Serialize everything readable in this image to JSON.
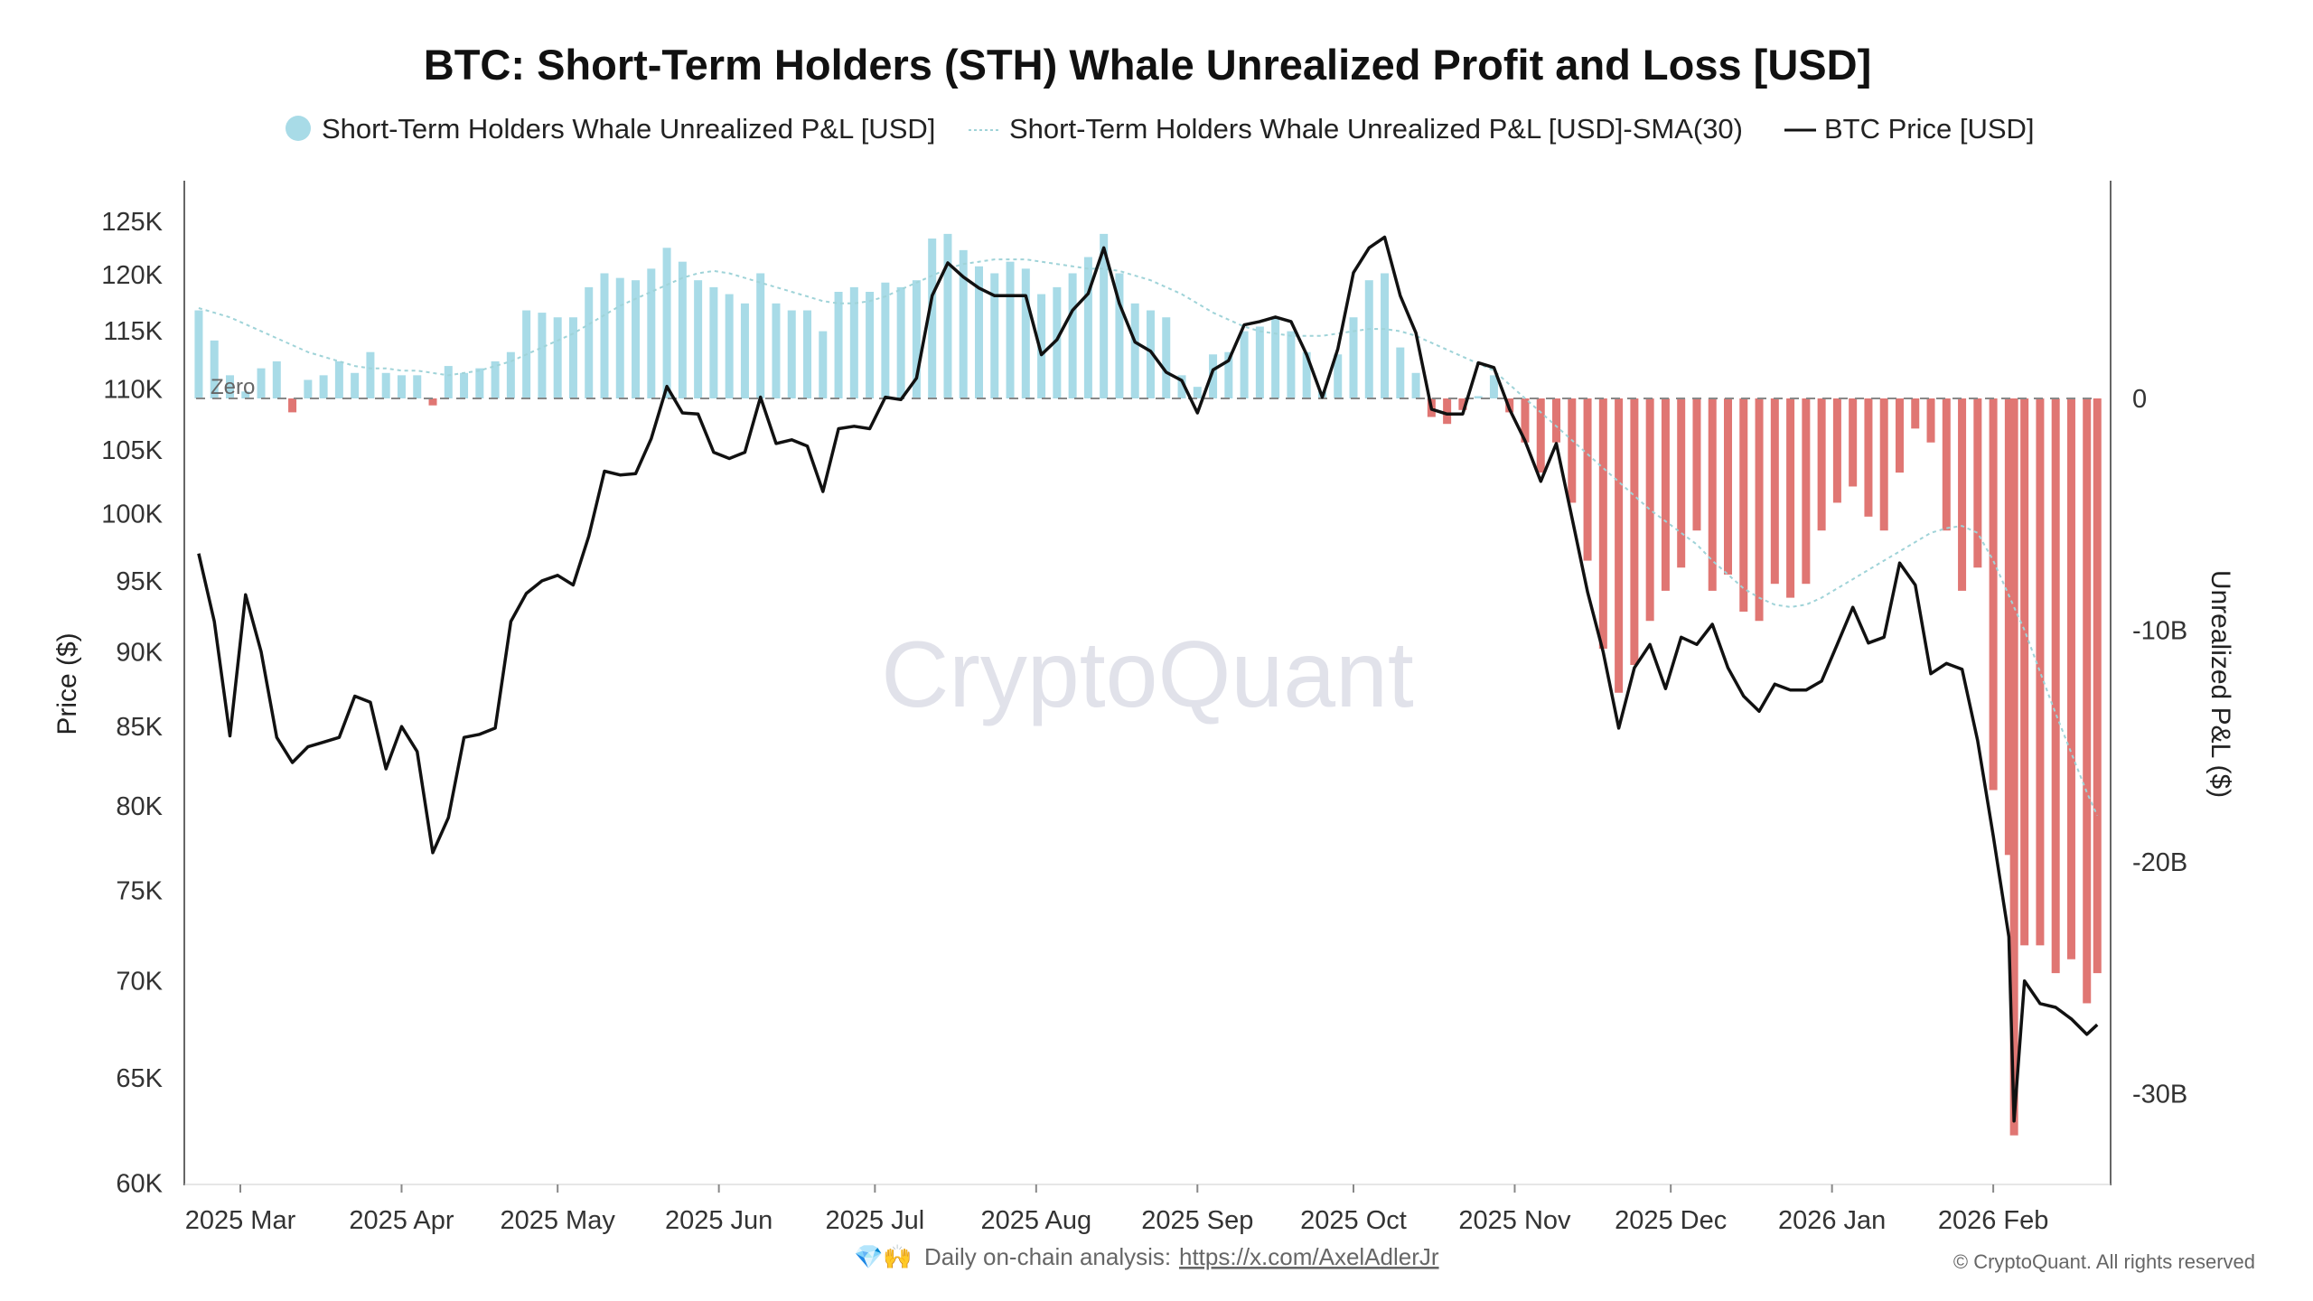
{
  "chart_data": {
    "type": "bar+line",
    "title": "BTC: Short-Term Holders (STH) Whale Unrealized Profit and Loss [USD]",
    "legend": {
      "placement": "top-center",
      "items": [
        {
          "label": "Short-Term Holders Whale Unrealized P&L [USD]",
          "marker": "circle"
        },
        {
          "label": "Short-Term Holders Whale Unrealized P&L [USD]-SMA(30)",
          "marker": "dotted-line"
        },
        {
          "label": "BTC Price [USD]",
          "marker": "line"
        }
      ]
    },
    "left_axis": {
      "label": "Price ($)",
      "scale": "log",
      "range": [
        60000,
        128000
      ],
      "ticks": [
        {
          "value": 60000,
          "label": "60K"
        },
        {
          "value": 65000,
          "label": "65K"
        },
        {
          "value": 70000,
          "label": "70K"
        },
        {
          "value": 75000,
          "label": "75K"
        },
        {
          "value": 80000,
          "label": "80K"
        },
        {
          "value": 85000,
          "label": "85K"
        },
        {
          "value": 90000,
          "label": "90K"
        },
        {
          "value": 95000,
          "label": "95K"
        },
        {
          "value": 100000,
          "label": "100K"
        },
        {
          "value": 105000,
          "label": "105K"
        },
        {
          "value": 110000,
          "label": "110K"
        },
        {
          "value": 115000,
          "label": "115K"
        },
        {
          "value": 120000,
          "label": "120K"
        },
        {
          "value": 125000,
          "label": "125K"
        }
      ]
    },
    "right_axis": {
      "label": "Unrealized P&L ($)",
      "scale": "linear",
      "unit": "USD billions",
      "range": [
        -33.8,
        9.5
      ],
      "ticks": [
        {
          "value": 0,
          "label": "0"
        },
        {
          "value": -10,
          "label": "-10B"
        },
        {
          "value": -20,
          "label": "-20B"
        },
        {
          "value": -30,
          "label": "-30B"
        }
      ]
    },
    "x_axis": {
      "range": [
        "2025-02-20",
        "2026-02-22"
      ],
      "ticks": [
        {
          "date": "2025-03-01",
          "label": "2025 Mar"
        },
        {
          "date": "2025-04-01",
          "label": "2025 Apr"
        },
        {
          "date": "2025-05-01",
          "label": "2025 May"
        },
        {
          "date": "2025-06-01",
          "label": "2025 Jun"
        },
        {
          "date": "2025-07-01",
          "label": "2025 Jul"
        },
        {
          "date": "2025-08-01",
          "label": "2025 Aug"
        },
        {
          "date": "2025-09-01",
          "label": "2025 Sep"
        },
        {
          "date": "2025-10-01",
          "label": "2025 Oct"
        },
        {
          "date": "2025-11-01",
          "label": "2025 Nov"
        },
        {
          "date": "2025-12-01",
          "label": "2025 Dec"
        },
        {
          "date": "2026-01-01",
          "label": "2026 Jan"
        },
        {
          "date": "2026-02-01",
          "label": "2026 Feb"
        }
      ]
    },
    "zero_line_label": "Zero",
    "grid": false,
    "colors": {
      "profit": "#a8dbe7",
      "loss": "#e07673",
      "sma": "#9fd3d8",
      "price": "#111111",
      "zero_line": "#888888"
    },
    "columns": [
      "date",
      "btc_price_usd",
      "pnl_usd_billions",
      "pnl_sma30_usd_billions"
    ],
    "rows": [
      [
        "2025-02-21",
        97000,
        3.8,
        3.9
      ],
      [
        "2025-02-24",
        92100,
        2.5,
        3.7
      ],
      [
        "2025-02-27",
        84400,
        1.0,
        3.5
      ],
      [
        "2025-03-02",
        94000,
        0.3,
        3.2
      ],
      [
        "2025-03-05",
        90000,
        1.3,
        2.9
      ],
      [
        "2025-03-08",
        84300,
        1.6,
        2.6
      ],
      [
        "2025-03-11",
        82700,
        -0.6,
        2.3
      ],
      [
        "2025-03-14",
        83700,
        0.8,
        2.0
      ],
      [
        "2025-03-17",
        84000,
        1.0,
        1.8
      ],
      [
        "2025-03-20",
        84300,
        1.6,
        1.6
      ],
      [
        "2025-03-23",
        87000,
        1.1,
        1.4
      ],
      [
        "2025-03-26",
        86600,
        2.0,
        1.3
      ],
      [
        "2025-03-29",
        82300,
        1.1,
        1.3
      ],
      [
        "2025-04-01",
        85000,
        1.0,
        1.2
      ],
      [
        "2025-04-04",
        83400,
        1.0,
        1.2
      ],
      [
        "2025-04-07",
        77200,
        -0.3,
        1.1
      ],
      [
        "2025-04-10",
        79300,
        1.4,
        1.0
      ],
      [
        "2025-04-13",
        84300,
        1.1,
        1.1
      ],
      [
        "2025-04-16",
        84500,
        1.3,
        1.2
      ],
      [
        "2025-04-19",
        84900,
        1.6,
        1.4
      ],
      [
        "2025-04-22",
        92100,
        2.0,
        1.6
      ],
      [
        "2025-04-25",
        94100,
        3.8,
        1.9
      ],
      [
        "2025-04-28",
        95000,
        3.7,
        2.2
      ],
      [
        "2025-05-01",
        95400,
        3.5,
        2.5
      ],
      [
        "2025-05-04",
        94700,
        3.5,
        2.8
      ],
      [
        "2025-05-07",
        98300,
        4.8,
        3.2
      ],
      [
        "2025-05-10",
        103300,
        5.4,
        3.6
      ],
      [
        "2025-05-13",
        103000,
        5.2,
        4.0
      ],
      [
        "2025-05-16",
        103100,
        5.1,
        4.3
      ],
      [
        "2025-05-19",
        105900,
        5.6,
        4.6
      ],
      [
        "2025-05-22",
        110200,
        6.5,
        4.9
      ],
      [
        "2025-05-25",
        108000,
        5.9,
        5.2
      ],
      [
        "2025-05-28",
        107900,
        5.1,
        5.4
      ],
      [
        "2025-05-31",
        104800,
        4.8,
        5.5
      ],
      [
        "2025-06-03",
        104300,
        4.5,
        5.4
      ],
      [
        "2025-06-06",
        104800,
        4.1,
        5.2
      ],
      [
        "2025-06-09",
        109300,
        5.4,
        5.0
      ],
      [
        "2025-06-12",
        105500,
        4.1,
        4.8
      ],
      [
        "2025-06-15",
        105800,
        3.8,
        4.6
      ],
      [
        "2025-06-18",
        105300,
        3.8,
        4.4
      ],
      [
        "2025-06-21",
        101700,
        2.9,
        4.2
      ],
      [
        "2025-06-24",
        106700,
        4.6,
        4.1
      ],
      [
        "2025-06-27",
        106900,
        4.8,
        4.1
      ],
      [
        "2025-06-30",
        106700,
        4.6,
        4.2
      ],
      [
        "2025-07-03",
        109300,
        5.0,
        4.4
      ],
      [
        "2025-07-06",
        109100,
        4.8,
        4.7
      ],
      [
        "2025-07-09",
        110900,
        5.1,
        5.0
      ],
      [
        "2025-07-12",
        118100,
        6.9,
        5.3
      ],
      [
        "2025-07-15",
        121100,
        7.1,
        5.6
      ],
      [
        "2025-07-18",
        119800,
        6.4,
        5.8
      ],
      [
        "2025-07-21",
        118800,
        5.7,
        5.9
      ],
      [
        "2025-07-24",
        118100,
        5.4,
        6.0
      ],
      [
        "2025-07-27",
        118100,
        5.9,
        6.0
      ],
      [
        "2025-07-30",
        118100,
        5.6,
        6.0
      ],
      [
        "2025-08-02",
        112900,
        4.5,
        5.9
      ],
      [
        "2025-08-05",
        114200,
        4.8,
        5.8
      ],
      [
        "2025-08-08",
        116800,
        5.4,
        5.7
      ],
      [
        "2025-08-11",
        118300,
        6.1,
        5.6
      ],
      [
        "2025-08-14",
        122500,
        7.1,
        5.6
      ],
      [
        "2025-08-17",
        117400,
        5.4,
        5.5
      ],
      [
        "2025-08-20",
        114000,
        4.1,
        5.3
      ],
      [
        "2025-08-23",
        113200,
        3.8,
        5.1
      ],
      [
        "2025-08-26",
        111400,
        3.5,
        4.8
      ],
      [
        "2025-08-29",
        110700,
        1.0,
        4.5
      ],
      [
        "2025-09-01",
        108000,
        0.5,
        4.1
      ],
      [
        "2025-09-04",
        111600,
        1.9,
        3.7
      ],
      [
        "2025-09-07",
        112400,
        2.0,
        3.4
      ],
      [
        "2025-09-10",
        115500,
        2.9,
        3.1
      ],
      [
        "2025-09-13",
        115800,
        3.1,
        2.9
      ],
      [
        "2025-09-16",
        116200,
        3.5,
        2.8
      ],
      [
        "2025-09-19",
        115800,
        2.9,
        2.7
      ],
      [
        "2025-09-22",
        112900,
        2.0,
        2.7
      ],
      [
        "2025-09-25",
        109300,
        0.3,
        2.7
      ],
      [
        "2025-09-28",
        113400,
        1.9,
        2.8
      ],
      [
        "2025-10-01",
        120200,
        3.5,
        2.9
      ],
      [
        "2025-10-04",
        122500,
        5.1,
        3.0
      ],
      [
        "2025-10-07",
        123500,
        5.4,
        3.0
      ],
      [
        "2025-10-10",
        118100,
        2.2,
        2.9
      ],
      [
        "2025-10-13",
        114800,
        1.1,
        2.7
      ],
      [
        "2025-10-16",
        108300,
        -0.8,
        2.4
      ],
      [
        "2025-10-19",
        107900,
        -1.1,
        2.1
      ],
      [
        "2025-10-22",
        107900,
        -0.5,
        1.8
      ],
      [
        "2025-10-25",
        112200,
        0.1,
        1.5
      ],
      [
        "2025-10-28",
        111800,
        1.0,
        1.2
      ],
      [
        "2025-10-31",
        108300,
        -0.6,
        0.6
      ],
      [
        "2025-11-03",
        105700,
        -1.9,
        0.0
      ],
      [
        "2025-11-06",
        102500,
        -3.2,
        -0.6
      ],
      [
        "2025-11-09",
        105500,
        -1.9,
        -1.2
      ],
      [
        "2025-11-12",
        99700,
        -4.5,
        -1.8
      ],
      [
        "2025-11-15",
        94200,
        -7.0,
        -2.4
      ],
      [
        "2025-11-18",
        90000,
        -10.8,
        -3.0
      ],
      [
        "2025-11-21",
        84900,
        -12.7,
        -3.6
      ],
      [
        "2025-11-24",
        88900,
        -11.5,
        -4.2
      ],
      [
        "2025-11-27",
        90500,
        -9.6,
        -4.8
      ],
      [
        "2025-11-30",
        87500,
        -8.3,
        -5.3
      ],
      [
        "2025-12-03",
        91000,
        -7.3,
        -5.8
      ],
      [
        "2025-12-06",
        90500,
        -5.7,
        -6.3
      ],
      [
        "2025-12-09",
        91900,
        -8.3,
        -7.0
      ],
      [
        "2025-12-12",
        88900,
        -7.6,
        -7.6
      ],
      [
        "2025-12-15",
        87000,
        -9.2,
        -8.2
      ],
      [
        "2025-12-18",
        86000,
        -9.6,
        -8.6
      ],
      [
        "2025-12-21",
        87800,
        -8.0,
        -8.9
      ],
      [
        "2025-12-24",
        87400,
        -8.6,
        -9.0
      ],
      [
        "2025-12-27",
        87400,
        -8.0,
        -8.9
      ],
      [
        "2025-12-30",
        88000,
        -5.7,
        -8.6
      ],
      [
        "2026-01-02",
        90500,
        -4.5,
        -8.2
      ],
      [
        "2026-01-05",
        93100,
        -3.8,
        -7.8
      ],
      [
        "2026-01-08",
        90600,
        -5.1,
        -7.4
      ],
      [
        "2026-01-11",
        91000,
        -5.7,
        -7.0
      ],
      [
        "2026-01-14",
        96300,
        -3.2,
        -6.6
      ],
      [
        "2026-01-17",
        94700,
        -1.3,
        -6.2
      ],
      [
        "2026-01-20",
        88500,
        -1.9,
        -5.8
      ],
      [
        "2026-01-23",
        89200,
        -5.7,
        -5.6
      ],
      [
        "2026-01-26",
        88800,
        -8.3,
        -5.5
      ],
      [
        "2026-01-29",
        84100,
        -7.3,
        -5.8
      ],
      [
        "2026-02-01",
        78200,
        -16.9,
        -7.0
      ],
      [
        "2026-02-04",
        72400,
        -19.7,
        -8.5
      ],
      [
        "2026-02-05",
        62900,
        -31.8,
        -9.0
      ],
      [
        "2026-02-07",
        70000,
        -23.6,
        -10.0
      ],
      [
        "2026-02-10",
        68800,
        -23.6,
        -11.8
      ],
      [
        "2026-02-13",
        68600,
        -24.8,
        -13.6
      ],
      [
        "2026-02-16",
        68000,
        -24.2,
        -15.3
      ],
      [
        "2026-02-19",
        67200,
        -26.1,
        -17.0
      ],
      [
        "2026-02-21",
        67700,
        -24.8,
        -18.0
      ]
    ],
    "watermark": "CryptoQuant"
  },
  "footer": {
    "emoji": "💎🙌",
    "text": "Daily on-chain analysis:",
    "link": "https://x.com/AxelAdlerJr",
    "copyright": "© CryptoQuant. All rights reserved"
  }
}
